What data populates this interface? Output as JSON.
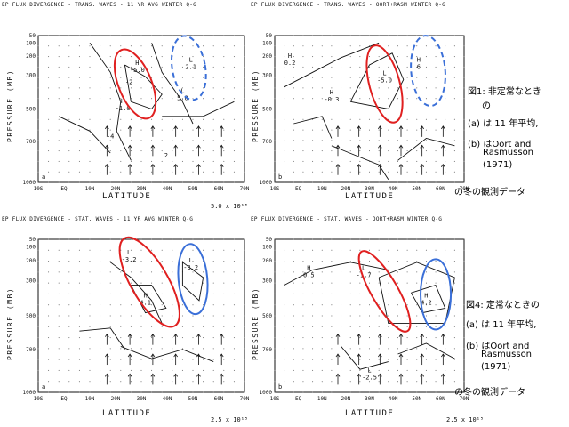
{
  "chart_data": [
    {
      "type": "contour",
      "title": "EP FLUX DIVERGENCE - TRANS. WAVES - 11 YR AVG WINTER Q-G",
      "panel": "a",
      "xlabel": "LATITUDE",
      "ylabel": "PRESSURE (MB)",
      "xticks": [
        "10S",
        "EQ",
        "10N",
        "20N",
        "30N",
        "40N",
        "50N",
        "60N",
        "70N"
      ],
      "yticks": [
        "50",
        "100",
        "200",
        "300",
        "500",
        "700",
        "1000"
      ],
      "scale": "5.0 x 10¹⁵",
      "labels": [
        {
          "text": "H",
          "value": "-5.0"
        },
        {
          "text": "L",
          "value": "2.1"
        },
        {
          "text": "L",
          "value": "5.0"
        },
        {
          "text": "H",
          "value": "-1.0"
        },
        {
          "text": "-2"
        },
        {
          "text": "-4"
        },
        {
          "text": "2"
        }
      ],
      "highlights": [
        {
          "shape": "ellipse",
          "color": "#e02020",
          "style": "solid"
        },
        {
          "shape": "ellipse",
          "color": "#3a6fd8",
          "style": "dashed"
        }
      ]
    },
    {
      "type": "contour",
      "title": "EP FLUX DIVERGENCE - TRANS. WAVES - OORT+RASM WINTER Q-G",
      "panel": "b",
      "xlabel": "LATITUDE",
      "ylabel": "PRESSURE (MB)",
      "xticks": [
        "10S",
        "EQ",
        "10N",
        "20N",
        "30N",
        "40N",
        "50N",
        "60N",
        "70N"
      ],
      "yticks": [
        "50",
        "100",
        "200",
        "300",
        "500",
        "700",
        "1000"
      ],
      "labels": [
        {
          "text": "H",
          "value": "0.2"
        },
        {
          "text": "L",
          "value": "-5.0"
        },
        {
          "text": "H",
          "value": "6"
        },
        {
          "text": "H",
          "value": "-0.3"
        }
      ],
      "highlights": [
        {
          "shape": "ellipse",
          "color": "#e02020",
          "style": "solid"
        },
        {
          "shape": "ellipse",
          "color": "#3a6fd8",
          "style": "dashed"
        }
      ]
    },
    {
      "type": "contour",
      "title": "EP FLUX DIVERGENCE - STAT. WAVES - 11 YR AVG WINTER Q-G",
      "panel": "a",
      "xlabel": "LATITUDE",
      "ylabel": "PRESSURE (MB)",
      "xticks": [
        "10S",
        "EQ",
        "10N",
        "20N",
        "30N",
        "40N",
        "50N",
        "60N",
        "70N"
      ],
      "yticks": [
        "50",
        "100",
        "200",
        "300",
        "500",
        "700",
        "1000"
      ],
      "scale": "2.5 x 10¹⁵",
      "labels": [
        {
          "text": "L",
          "value": "-3.2"
        },
        {
          "text": "H",
          "value": "4.1"
        },
        {
          "text": "L",
          "value": "-3.2"
        }
      ],
      "highlights": [
        {
          "shape": "ellipse",
          "color": "#e02020",
          "style": "solid"
        },
        {
          "shape": "ellipse",
          "color": "#3a6fd8",
          "style": "solid"
        }
      ]
    },
    {
      "type": "contour",
      "title": "EP FLUX DIVERGENCE - STAT. WAVES - OORT+RASM WINTER Q-G",
      "panel": "b",
      "xlabel": "LATITUDE",
      "ylabel": "PRESSURE (MB)",
      "xticks": [
        "10S",
        "EQ",
        "10N",
        "20N",
        "30N",
        "40N",
        "50N",
        "60N",
        "70N"
      ],
      "yticks": [
        "50",
        "100",
        "200",
        "300",
        "500",
        "700",
        "1000"
      ],
      "scale": "2.5 x 10¹⁵",
      "labels": [
        {
          "text": "H",
          "value": "0.5"
        },
        {
          "text": "L",
          "value": "-1.7"
        },
        {
          "text": "H",
          "value": "4.2"
        },
        {
          "text": "L",
          "value": "-2.5"
        }
      ],
      "highlights": [
        {
          "shape": "ellipse",
          "color": "#e02020",
          "style": "solid"
        },
        {
          "shape": "ellipse",
          "color": "#3a6fd8",
          "style": "solid"
        }
      ]
    }
  ],
  "captions": {
    "fig1": {
      "line1": "図1: 非定常なとき",
      "line2": "の",
      "line3": "(a) は 11 年平均,",
      "line4": "(b) はOort and",
      "line5": "Rasmusson",
      "line6": "(1971)",
      "line7": "の冬の観測データ"
    },
    "fig4": {
      "line1": "図4: 定常なときの",
      "line2": "(a) は 11 年平均,",
      "line3": "(b) はOort and",
      "line4": "Rasmusson",
      "line5": "(1971)",
      "line6": "の冬の観測データ"
    }
  },
  "colors": {
    "red": "#e02020",
    "blue": "#3a6fd8"
  }
}
